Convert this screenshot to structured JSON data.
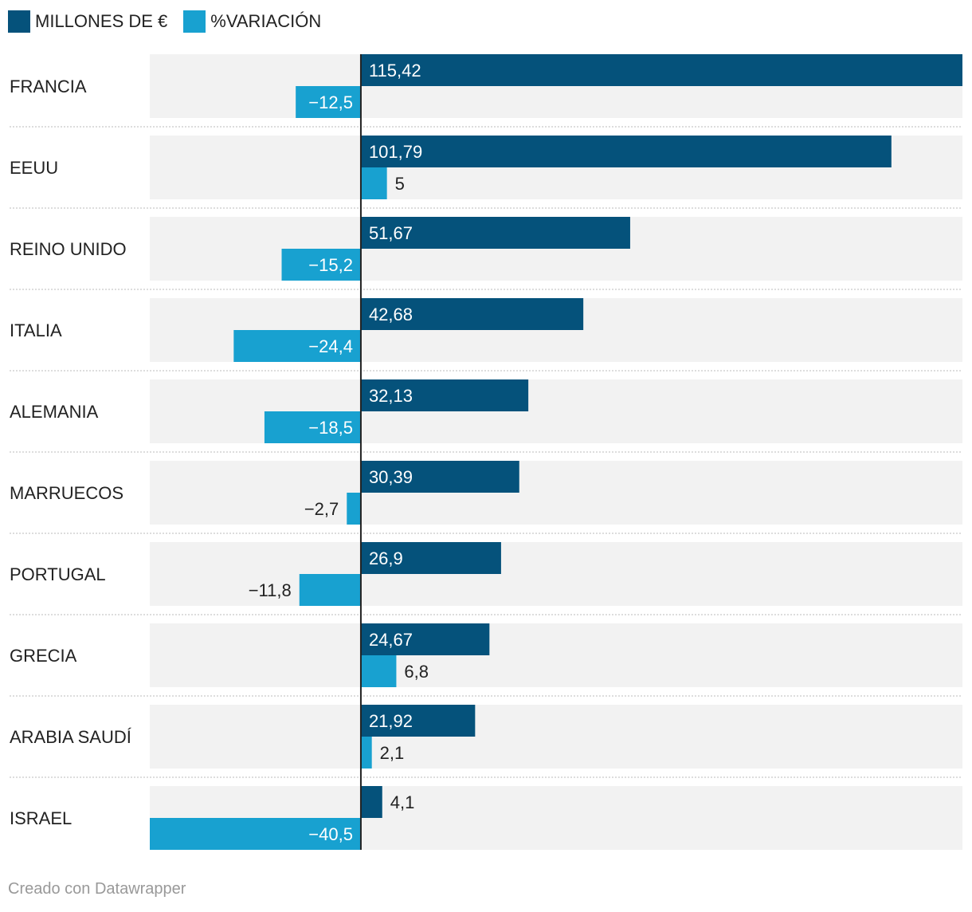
{
  "legend": {
    "series1_label": "MILLONES DE €",
    "series2_label": "%VARIACIÓN"
  },
  "colors": {
    "series1": "#05527b",
    "series2": "#18a1d0",
    "band": "#f2f2f2",
    "axis": "#222222"
  },
  "footer": {
    "credit": "Creado con Datawrapper"
  },
  "chart_data": {
    "type": "bar",
    "orientation": "horizontal",
    "title": "",
    "categories": [
      "FRANCIA",
      "EEUU",
      "REINO UNIDO",
      "ITALIA",
      "ALEMANIA",
      "MARRUECOS",
      "PORTUGAL",
      "GRECIA",
      "ARABIA SAUDÍ",
      "ISRAEL"
    ],
    "series": [
      {
        "name": "MILLONES DE €",
        "values": [
          115.42,
          101.79,
          51.67,
          42.68,
          32.13,
          30.39,
          26.9,
          24.67,
          21.92,
          4.1
        ],
        "labels": [
          "115,42",
          "101,79",
          "51,67",
          "42,68",
          "32,13",
          "30,39",
          "26,9",
          "24,67",
          "21,92",
          "4,1"
        ]
      },
      {
        "name": "%VARIACIÓN",
        "values": [
          -12.5,
          5,
          -15.2,
          -24.4,
          -18.5,
          -2.7,
          -11.8,
          6.8,
          2.1,
          -40.5
        ],
        "labels": [
          "−12,5",
          "5",
          "−15,2",
          "−24,4",
          "−18,5",
          "−2,7",
          "−11,8",
          "6,8",
          "2,1",
          "−40,5"
        ]
      }
    ],
    "xlim": [
      -40.5,
      115.42
    ],
    "legend_position": "top-left",
    "grid": false
  }
}
